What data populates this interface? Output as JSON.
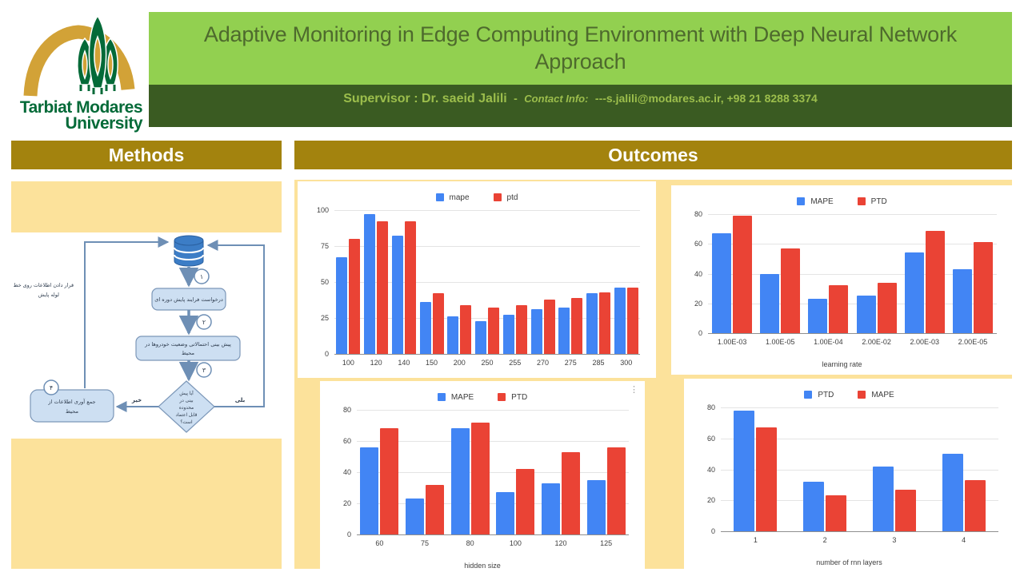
{
  "theme": {
    "gold": "#A3830E",
    "panel_yellow": "#FCE29B",
    "green_bg": "#92D050",
    "title_text": "#4E6A2D",
    "dark_green": "#3A5B22",
    "supervisor_text": "#9CBE4C",
    "logo_gold": "#D2A237",
    "logo_green": "#046A38",
    "chart_blue": "#4285F4",
    "chart_red": "#EA4335",
    "flow_fill": "#CDDFF2",
    "flow_stroke": "#6E8FB5"
  },
  "icons": {
    "more_vertical": "⋮"
  },
  "header": {
    "title": "Adaptive Monitoring in Edge Computing Environment with Deep Neural Network Approach",
    "supervisor": "Supervisor : Dr. saeid Jalili",
    "separator": "-",
    "contact_label": "Contact Info:",
    "contact_value": "---s.jalili@modares.ac.ir, +98 21 8288 3374"
  },
  "logo": {
    "line1": "Tarbiat Modares",
    "line2": "University"
  },
  "sections": {
    "methods_label": "Methods",
    "outcomes_label": "Outcomes"
  },
  "flowchart": {
    "side_note_lines": [
      "قرار دادن اطلاعات روی خط",
      "لوله پایش"
    ],
    "steps": {
      "request": "درخواست فرایند پایش دوره ای",
      "predict_lines": [
        "پیش بینی احتمالاتی وضعیت خودروها در",
        "محیط"
      ],
      "decision_lines": [
        "آیا پیش",
        "بینی در",
        "محدوده",
        "قابل اعتماد",
        "است؟"
      ],
      "collect_lines": [
        "جمع آوری اطلاعات از",
        "محیط"
      ]
    },
    "labels": {
      "yes": "بلی",
      "no": "خیر"
    },
    "step_numbers": [
      "۱",
      "۲",
      "۳",
      "۴"
    ]
  },
  "chart_data": [
    {
      "type": "bar",
      "title": "",
      "categories": [
        "100",
        "120",
        "140",
        "150",
        "200",
        "250",
        "255",
        "270",
        "275",
        "285",
        "300"
      ],
      "series": [
        {
          "name": "mape",
          "color": "#4285F4",
          "values": [
            67,
            97,
            82,
            36,
            26,
            23,
            27,
            31,
            32,
            42,
            46
          ]
        },
        {
          "name": "ptd",
          "color": "#EA4335",
          "values": [
            80,
            92,
            92,
            42,
            34,
            32,
            34,
            38,
            39,
            43,
            46
          ]
        }
      ],
      "xlabel": "",
      "ylabel": "",
      "ylim": [
        0,
        100
      ],
      "yticks": [
        0,
        25,
        50,
        75,
        100
      ],
      "legend_position": "top",
      "grid": true
    },
    {
      "type": "bar",
      "title": "",
      "categories": [
        "1.00E-03",
        "1.00E-05",
        "1.00E-04",
        "2.00E-02",
        "2.00E-03",
        "2.00E-05"
      ],
      "series": [
        {
          "name": "MAPE",
          "color": "#4285F4",
          "values": [
            67,
            40,
            23,
            25,
            54,
            43
          ]
        },
        {
          "name": "PTD",
          "color": "#EA4335",
          "values": [
            79,
            57,
            32,
            34,
            69,
            61
          ]
        }
      ],
      "xlabel": "learning rate",
      "ylabel": "",
      "ylim": [
        0,
        80
      ],
      "yticks": [
        0,
        20,
        40,
        60,
        80
      ],
      "legend_position": "top",
      "grid": true
    },
    {
      "type": "bar",
      "title": "",
      "categories": [
        "60",
        "75",
        "80",
        "100",
        "120",
        "125"
      ],
      "series": [
        {
          "name": "MAPE",
          "color": "#4285F4",
          "values": [
            56,
            23,
            68,
            27,
            33,
            35
          ]
        },
        {
          "name": "PTD",
          "color": "#EA4335",
          "values": [
            68,
            32,
            72,
            42,
            53,
            56
          ]
        }
      ],
      "xlabel": "hidden size",
      "ylabel": "",
      "ylim": [
        0,
        80
      ],
      "yticks": [
        0,
        20,
        40,
        60,
        80
      ],
      "legend_position": "top",
      "grid": true
    },
    {
      "type": "bar",
      "title": "",
      "categories": [
        "1",
        "2",
        "3",
        "4"
      ],
      "series": [
        {
          "name": "PTD",
          "color": "#4285F4",
          "values": [
            78,
            32,
            42,
            50
          ]
        },
        {
          "name": "MAPE",
          "color": "#EA4335",
          "values": [
            67,
            23,
            27,
            33
          ]
        }
      ],
      "xlabel": "number of rnn layers",
      "ylabel": "",
      "ylim": [
        0,
        80
      ],
      "yticks": [
        0,
        20,
        40,
        60,
        80
      ],
      "legend_position": "top",
      "grid": true
    }
  ]
}
